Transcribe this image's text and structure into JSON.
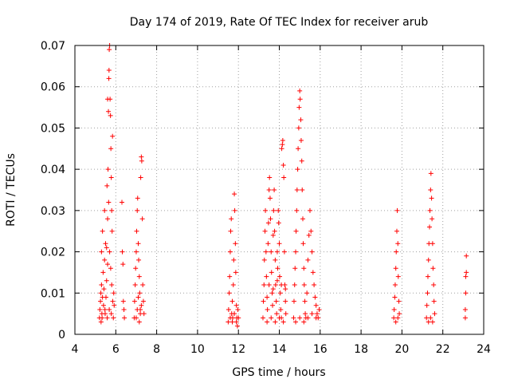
{
  "chart_data": {
    "type": "scatter",
    "title": "Day 174 of 2019, Rate Of TEC Index for receiver arub",
    "xlabel": "GPS time / hours",
    "ylabel": "ROTI / TECUs",
    "xlim": [
      4,
      24
    ],
    "ylim": [
      0,
      0.07
    ],
    "xticks": [
      4,
      6,
      8,
      10,
      12,
      14,
      16,
      18,
      20,
      22,
      24
    ],
    "xtick_labels": [
      "4",
      "6",
      "8",
      "10",
      "12",
      "14",
      "16",
      "18",
      "20",
      "22",
      "24"
    ],
    "yticks": [
      0,
      0.01,
      0.02,
      0.03,
      0.04,
      0.05,
      0.06,
      0.07
    ],
    "ytick_labels": [
      "0",
      "0.01",
      "0.02",
      "0.03",
      "0.04",
      "0.05",
      "0.06",
      "0.07"
    ],
    "grid": true,
    "marker": "+",
    "marker_color": "#ff0000",
    "series": [
      {
        "name": "ROTI",
        "points": [
          [
            5.2,
            0.004
          ],
          [
            5.22,
            0.006
          ],
          [
            5.25,
            0.008
          ],
          [
            5.27,
            0.01
          ],
          [
            5.3,
            0.012
          ],
          [
            5.32,
            0.005
          ],
          [
            5.35,
            0.009
          ],
          [
            5.38,
            0.015
          ],
          [
            5.4,
            0.007
          ],
          [
            5.42,
            0.011
          ],
          [
            5.45,
            0.018
          ],
          [
            5.47,
            0.006
          ],
          [
            5.5,
            0.022
          ],
          [
            5.52,
            0.009
          ],
          [
            5.55,
            0.013
          ],
          [
            5.57,
            0.036
          ],
          [
            5.6,
            0.028
          ],
          [
            5.62,
            0.04
          ],
          [
            5.64,
            0.054
          ],
          [
            5.66,
            0.062
          ],
          [
            5.67,
            0.064
          ],
          [
            5.68,
            0.069
          ],
          [
            5.7,
            0.07
          ],
          [
            5.72,
            0.057
          ],
          [
            5.74,
            0.053
          ],
          [
            5.76,
            0.045
          ],
          [
            5.78,
            0.038
          ],
          [
            5.8,
            0.03
          ],
          [
            5.82,
            0.025
          ],
          [
            5.84,
            0.048
          ],
          [
            5.3,
            0.02
          ],
          [
            5.35,
            0.025
          ],
          [
            5.45,
            0.03
          ],
          [
            5.55,
            0.021
          ],
          [
            5.6,
            0.017
          ],
          [
            5.65,
            0.032
          ],
          [
            5.7,
            0.02
          ],
          [
            5.75,
            0.016
          ],
          [
            5.8,
            0.012
          ],
          [
            5.85,
            0.008
          ],
          [
            5.28,
            0.003
          ],
          [
            5.33,
            0.004
          ],
          [
            5.48,
            0.005
          ],
          [
            5.58,
            0.004
          ],
          [
            5.68,
            0.006
          ],
          [
            5.78,
            0.005
          ],
          [
            5.88,
            0.004
          ],
          [
            5.9,
            0.01
          ],
          [
            5.92,
            0.007
          ],
          [
            5.6,
            0.057
          ],
          [
            6.3,
            0.032
          ],
          [
            6.32,
            0.02
          ],
          [
            6.35,
            0.017
          ],
          [
            6.37,
            0.008
          ],
          [
            6.4,
            0.006
          ],
          [
            6.42,
            0.004
          ],
          [
            6.9,
            0.004
          ],
          [
            6.92,
            0.008
          ],
          [
            6.95,
            0.012
          ],
          [
            6.97,
            0.016
          ],
          [
            7.0,
            0.02
          ],
          [
            7.02,
            0.025
          ],
          [
            7.05,
            0.03
          ],
          [
            7.07,
            0.033
          ],
          [
            7.1,
            0.022
          ],
          [
            7.12,
            0.018
          ],
          [
            7.15,
            0.014
          ],
          [
            7.17,
            0.01
          ],
          [
            7.2,
            0.006
          ],
          [
            7.22,
            0.038
          ],
          [
            7.25,
            0.043
          ],
          [
            7.27,
            0.042
          ],
          [
            7.3,
            0.028
          ],
          [
            7.32,
            0.012
          ],
          [
            7.35,
            0.008
          ],
          [
            7.38,
            0.005
          ],
          [
            7.0,
            0.004
          ],
          [
            7.05,
            0.006
          ],
          [
            7.1,
            0.009
          ],
          [
            7.15,
            0.003
          ],
          [
            7.2,
            0.005
          ],
          [
            7.25,
            0.007
          ],
          [
            11.5,
            0.003
          ],
          [
            11.52,
            0.006
          ],
          [
            11.55,
            0.01
          ],
          [
            11.57,
            0.014
          ],
          [
            11.6,
            0.02
          ],
          [
            11.62,
            0.025
          ],
          [
            11.65,
            0.028
          ],
          [
            11.67,
            0.005
          ],
          [
            11.7,
            0.008
          ],
          [
            11.72,
            0.004
          ],
          [
            11.75,
            0.012
          ],
          [
            11.77,
            0.018
          ],
          [
            11.8,
            0.034
          ],
          [
            11.82,
            0.03
          ],
          [
            11.85,
            0.022
          ],
          [
            11.87,
            0.015
          ],
          [
            11.9,
            0.007
          ],
          [
            11.92,
            0.004
          ],
          [
            11.95,
            0.002
          ],
          [
            11.97,
            0.006
          ],
          [
            11.6,
            0.004
          ],
          [
            11.7,
            0.003
          ],
          [
            11.8,
            0.005
          ],
          [
            11.9,
            0.003
          ],
          [
            12.0,
            0.004
          ],
          [
            13.2,
            0.004
          ],
          [
            13.22,
            0.008
          ],
          [
            13.25,
            0.012
          ],
          [
            13.27,
            0.018
          ],
          [
            13.3,
            0.025
          ],
          [
            13.32,
            0.03
          ],
          [
            13.35,
            0.02
          ],
          [
            13.37,
            0.014
          ],
          [
            13.4,
            0.009
          ],
          [
            13.42,
            0.006
          ],
          [
            13.45,
            0.022
          ],
          [
            13.47,
            0.027
          ],
          [
            13.5,
            0.035
          ],
          [
            13.52,
            0.038
          ],
          [
            13.55,
            0.033
          ],
          [
            13.57,
            0.028
          ],
          [
            13.6,
            0.02
          ],
          [
            13.62,
            0.015
          ],
          [
            13.65,
            0.01
          ],
          [
            13.67,
            0.007
          ],
          [
            13.7,
            0.024
          ],
          [
            13.72,
            0.03
          ],
          [
            13.75,
            0.035
          ],
          [
            13.77,
            0.025
          ],
          [
            13.8,
            0.018
          ],
          [
            13.82,
            0.012
          ],
          [
            13.85,
            0.008
          ],
          [
            13.87,
            0.005
          ],
          [
            13.9,
            0.02
          ],
          [
            13.92,
            0.016
          ],
          [
            13.95,
            0.03
          ],
          [
            13.97,
            0.027
          ],
          [
            14.0,
            0.022
          ],
          [
            14.02,
            0.014
          ],
          [
            14.05,
            0.01
          ],
          [
            14.07,
            0.006
          ],
          [
            14.1,
            0.004
          ],
          [
            14.12,
            0.045
          ],
          [
            14.15,
            0.046
          ],
          [
            14.17,
            0.047
          ],
          [
            14.2,
            0.041
          ],
          [
            14.22,
            0.038
          ],
          [
            14.25,
            0.02
          ],
          [
            14.27,
            0.012
          ],
          [
            14.3,
            0.008
          ],
          [
            14.32,
            0.005
          ],
          [
            13.4,
            0.003
          ],
          [
            13.6,
            0.004
          ],
          [
            13.8,
            0.003
          ],
          [
            14.0,
            0.004
          ],
          [
            14.2,
            0.003
          ],
          [
            13.5,
            0.012
          ],
          [
            13.7,
            0.011
          ],
          [
            13.9,
            0.013
          ],
          [
            14.1,
            0.012
          ],
          [
            14.3,
            0.011
          ],
          [
            14.7,
            0.004
          ],
          [
            14.72,
            0.008
          ],
          [
            14.75,
            0.012
          ],
          [
            14.77,
            0.016
          ],
          [
            14.8,
            0.02
          ],
          [
            14.82,
            0.025
          ],
          [
            14.85,
            0.03
          ],
          [
            14.87,
            0.035
          ],
          [
            14.9,
            0.04
          ],
          [
            14.92,
            0.045
          ],
          [
            14.95,
            0.05
          ],
          [
            14.97,
            0.055
          ],
          [
            15.0,
            0.059
          ],
          [
            15.02,
            0.057
          ],
          [
            15.05,
            0.052
          ],
          [
            15.07,
            0.047
          ],
          [
            15.1,
            0.042
          ],
          [
            15.12,
            0.035
          ],
          [
            15.15,
            0.028
          ],
          [
            15.17,
            0.022
          ],
          [
            15.2,
            0.016
          ],
          [
            15.22,
            0.012
          ],
          [
            15.25,
            0.008
          ],
          [
            15.27,
            0.005
          ],
          [
            15.3,
            0.004
          ],
          [
            15.35,
            0.01
          ],
          [
            15.4,
            0.018
          ],
          [
            15.45,
            0.024
          ],
          [
            15.5,
            0.03
          ],
          [
            15.55,
            0.025
          ],
          [
            15.6,
            0.02
          ],
          [
            15.65,
            0.015
          ],
          [
            15.7,
            0.012
          ],
          [
            15.75,
            0.009
          ],
          [
            15.8,
            0.007
          ],
          [
            15.85,
            0.005
          ],
          [
            15.9,
            0.004
          ],
          [
            15.95,
            0.006
          ],
          [
            14.8,
            0.003
          ],
          [
            15.0,
            0.004
          ],
          [
            15.2,
            0.003
          ],
          [
            15.4,
            0.004
          ],
          [
            15.6,
            0.005
          ],
          [
            15.8,
            0.004
          ],
          [
            19.6,
            0.004
          ],
          [
            19.62,
            0.006
          ],
          [
            19.65,
            0.009
          ],
          [
            19.67,
            0.012
          ],
          [
            19.7,
            0.016
          ],
          [
            19.72,
            0.02
          ],
          [
            19.75,
            0.025
          ],
          [
            19.77,
            0.03
          ],
          [
            19.8,
            0.022
          ],
          [
            19.82,
            0.014
          ],
          [
            19.85,
            0.008
          ],
          [
            19.87,
            0.005
          ],
          [
            19.7,
            0.003
          ],
          [
            19.8,
            0.004
          ],
          [
            21.2,
            0.004
          ],
          [
            21.22,
            0.007
          ],
          [
            21.25,
            0.01
          ],
          [
            21.27,
            0.014
          ],
          [
            21.3,
            0.018
          ],
          [
            21.32,
            0.022
          ],
          [
            21.35,
            0.026
          ],
          [
            21.37,
            0.03
          ],
          [
            21.4,
            0.035
          ],
          [
            21.42,
            0.039
          ],
          [
            21.45,
            0.033
          ],
          [
            21.47,
            0.028
          ],
          [
            21.5,
            0.022
          ],
          [
            21.52,
            0.016
          ],
          [
            21.55,
            0.012
          ],
          [
            21.57,
            0.008
          ],
          [
            21.6,
            0.005
          ],
          [
            21.3,
            0.003
          ],
          [
            21.4,
            0.004
          ],
          [
            21.5,
            0.003
          ],
          [
            23.1,
            0.004
          ],
          [
            23.1,
            0.006
          ],
          [
            23.12,
            0.01
          ],
          [
            23.12,
            0.014
          ],
          [
            23.15,
            0.015
          ],
          [
            23.15,
            0.019
          ]
        ]
      }
    ]
  }
}
